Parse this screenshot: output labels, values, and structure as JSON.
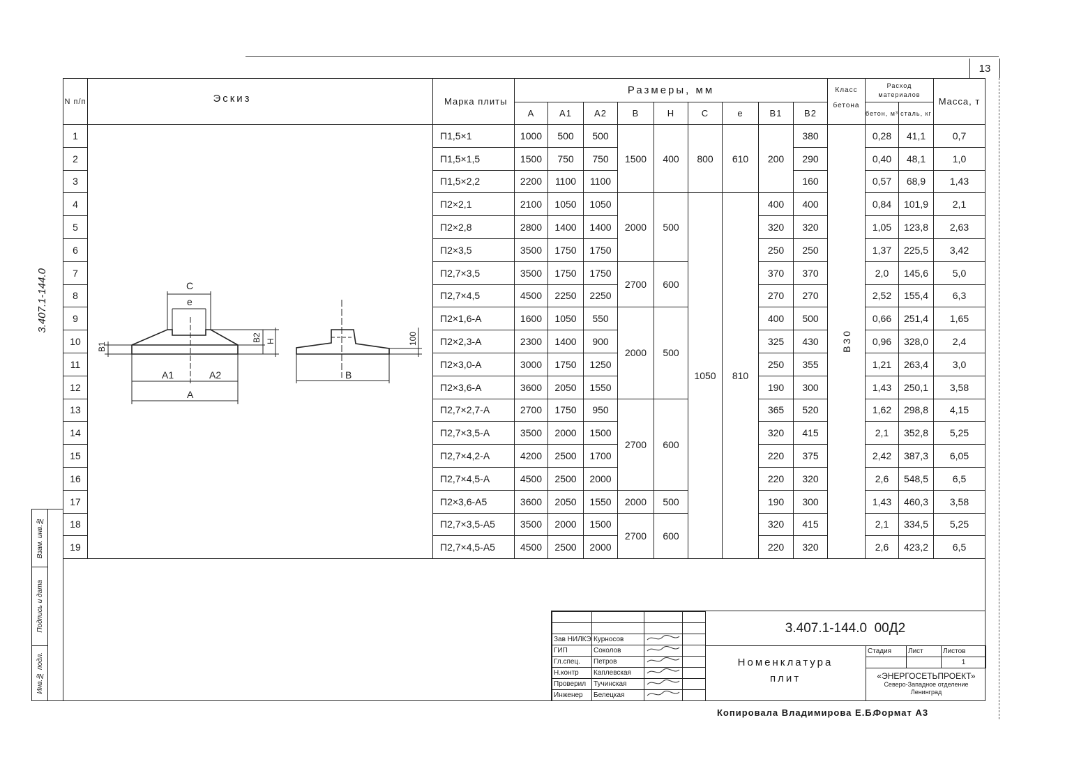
{
  "page_number": "13",
  "side_code": "3.407.1-144.0",
  "table": {
    "headers": {
      "n": "N п/п",
      "sketch": "Эскиз",
      "mark": "Марка плиты",
      "sizes": "Размеры, мм",
      "A": "A",
      "A1": "A1",
      "A2": "A2",
      "B": "B",
      "H": "H",
      "C": "C",
      "e": "e",
      "B1": "B1",
      "B2": "B2",
      "concrete_class": "Класс бетона",
      "consumption": "Расход материалов",
      "concrete": "бетон, м³",
      "steel": "сталь, кг",
      "mass": "Масса, т"
    },
    "concrete_class_value": "B30",
    "rows": [
      {
        "n": "1",
        "mark": "П1,5×1",
        "A": "1000",
        "A1": "500",
        "A2": "500",
        "B2": "380",
        "concrete": "0,28",
        "steel": "41,1",
        "mass": "0,7"
      },
      {
        "n": "2",
        "mark": "П1,5×1,5",
        "A": "1500",
        "A1": "750",
        "A2": "750",
        "B2": "290",
        "concrete": "0,40",
        "steel": "48,1",
        "mass": "1,0"
      },
      {
        "n": "3",
        "mark": "П1,5×2,2",
        "A": "2200",
        "A1": "1100",
        "A2": "1100",
        "B2": "160",
        "concrete": "0,57",
        "steel": "68,9",
        "mass": "1,43"
      },
      {
        "n": "4",
        "mark": "П2×2,1",
        "A": "2100",
        "A1": "1050",
        "A2": "1050",
        "B1": "400",
        "B2": "400",
        "concrete": "0,84",
        "steel": "101,9",
        "mass": "2,1"
      },
      {
        "n": "5",
        "mark": "П2×2,8",
        "A": "2800",
        "A1": "1400",
        "A2": "1400",
        "B1": "320",
        "B2": "320",
        "concrete": "1,05",
        "steel": "123,8",
        "mass": "2,63"
      },
      {
        "n": "6",
        "mark": "П2×3,5",
        "A": "3500",
        "A1": "1750",
        "A2": "1750",
        "B1": "250",
        "B2": "250",
        "concrete": "1,37",
        "steel": "225,5",
        "mass": "3,42"
      },
      {
        "n": "7",
        "mark": "П2,7×3,5",
        "A": "3500",
        "A1": "1750",
        "A2": "1750",
        "B1": "370",
        "B2": "370",
        "concrete": "2,0",
        "steel": "145,6",
        "mass": "5,0"
      },
      {
        "n": "8",
        "mark": "П2,7×4,5",
        "A": "4500",
        "A1": "2250",
        "A2": "2250",
        "B1": "270",
        "B2": "270",
        "concrete": "2,52",
        "steel": "155,4",
        "mass": "6,3"
      },
      {
        "n": "9",
        "mark": "П2×1,6-А",
        "A": "1600",
        "A1": "1050",
        "A2": "550",
        "B1": "400",
        "B2": "500",
        "concrete": "0,66",
        "steel": "251,4",
        "mass": "1,65"
      },
      {
        "n": "10",
        "mark": "П2×2,3-А",
        "A": "2300",
        "A1": "1400",
        "A2": "900",
        "B1": "325",
        "B2": "430",
        "concrete": "0,96",
        "steel": "328,0",
        "mass": "2,4"
      },
      {
        "n": "11",
        "mark": "П2×3,0-А",
        "A": "3000",
        "A1": "1750",
        "A2": "1250",
        "B1": "250",
        "B2": "355",
        "concrete": "1,21",
        "steel": "263,4",
        "mass": "3,0"
      },
      {
        "n": "12",
        "mark": "П2×3,6-А",
        "A": "3600",
        "A1": "2050",
        "A2": "1550",
        "B1": "190",
        "B2": "300",
        "concrete": "1,43",
        "steel": "250,1",
        "mass": "3,58"
      },
      {
        "n": "13",
        "mark": "П2,7×2,7-А",
        "A": "2700",
        "A1": "1750",
        "A2": "950",
        "B1": "365",
        "B2": "520",
        "concrete": "1,62",
        "steel": "298,8",
        "mass": "4,15"
      },
      {
        "n": "14",
        "mark": "П2,7×3,5-А",
        "A": "3500",
        "A1": "2000",
        "A2": "1500",
        "B1": "320",
        "B2": "415",
        "concrete": "2,1",
        "steel": "352,8",
        "mass": "5,25"
      },
      {
        "n": "15",
        "mark": "П2,7×4,2-А",
        "A": "4200",
        "A1": "2500",
        "A2": "1700",
        "B1": "220",
        "B2": "375",
        "concrete": "2,42",
        "steel": "387,3",
        "mass": "6,05"
      },
      {
        "n": "16",
        "mark": "П2,7×4,5-А",
        "A": "4500",
        "A1": "2500",
        "A2": "2000",
        "B1": "220",
        "B2": "320",
        "concrete": "2,6",
        "steel": "548,5",
        "mass": "6,5"
      },
      {
        "n": "17",
        "mark": "П2×3,6-А5",
        "A": "3600",
        "A1": "2050",
        "A2": "1550",
        "B1": "190",
        "B2": "300",
        "concrete": "1,43",
        "steel": "460,3",
        "mass": "3,58"
      },
      {
        "n": "18",
        "mark": "П2,7×3,5-А5",
        "A": "3500",
        "A1": "2000",
        "A2": "1500",
        "B1": "320",
        "B2": "415",
        "concrete": "2,1",
        "steel": "334,5",
        "mass": "5,25"
      },
      {
        "n": "19",
        "mark": "П2,7×4,5-А5",
        "A": "4500",
        "A1": "2500",
        "A2": "2000",
        "B1": "220",
        "B2": "320",
        "concrete": "2,6",
        "steel": "423,2",
        "mass": "6,5"
      }
    ],
    "BH_groups": [
      {
        "start": 1,
        "span": 3,
        "B": "1500",
        "H": "400"
      },
      {
        "start": 4,
        "span": 3,
        "B": "2000",
        "H": "500"
      },
      {
        "start": 7,
        "span": 2,
        "B": "2700",
        "H": "600"
      },
      {
        "start": 9,
        "span": 4,
        "B": "2000",
        "H": "500"
      },
      {
        "start": 13,
        "span": 4,
        "B": "2700",
        "H": "600"
      },
      {
        "start": 17,
        "span": 1,
        "B": "2000",
        "H": "500"
      },
      {
        "start": 18,
        "span": 2,
        "B": "2700",
        "H": "600"
      }
    ],
    "Ce_groups": [
      {
        "start": 1,
        "span": 3,
        "C": "800",
        "e": "610"
      },
      {
        "start": 4,
        "span": 16,
        "C": "1050",
        "e": "810"
      }
    ],
    "B1_group_1_3": "200"
  },
  "sketch": {
    "labels": {
      "C": "C",
      "e": "e",
      "A1": "A1",
      "A2": "A2",
      "A": "A",
      "B1": "B1",
      "B2": "B2",
      "H": "H",
      "B": "B",
      "dim100": "100"
    }
  },
  "left_stamp": [
    "Взам. инв.№",
    "Подпись и дата",
    "Инв.№ подл."
  ],
  "title_block": {
    "code": "3.407.1-144.0  00Д2",
    "title_line1": "Номенклатура",
    "title_line2": "плит",
    "stage_label": "Стадия",
    "sheet_label": "Лист",
    "sheets_label": "Листов",
    "sheets_value": "1",
    "org_name": "«ЭНЕРГОСЕТЬПРОЕКТ»",
    "org_branch": "Северо-Западное отделение",
    "org_city": "Ленинград",
    "signers": [
      {
        "role": "Зав НИЛКЭ",
        "name": "Курносов"
      },
      {
        "role": "ГИП",
        "name": "Соколов"
      },
      {
        "role": "Гл.спец.",
        "name": "Петров"
      },
      {
        "role": "Н.контр",
        "name": "Каплевская"
      },
      {
        "role": "Проверил",
        "name": "Тучинская"
      },
      {
        "role": "Инженер",
        "name": "Белецкая"
      }
    ]
  },
  "footer": {
    "copied": "Копировала Владимирова Е.Б.",
    "format": "Формат А3"
  }
}
